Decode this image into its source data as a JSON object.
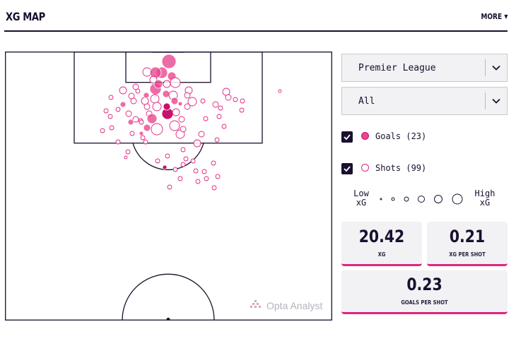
{
  "header": {
    "title": "XG MAP",
    "more_label": "MORE"
  },
  "filters": {
    "competition": "Premier League",
    "situation": "All"
  },
  "legend": {
    "goals_label": "Goals (23)",
    "shots_label": "Shots (99)",
    "goals_checked": true,
    "shots_checked": true,
    "low_line1": "Low",
    "low_line2": "xG",
    "high_line1": "High",
    "high_line2": "xG"
  },
  "stats": {
    "xg_value": "20.42",
    "xg_label": "XG",
    "xg_per_shot_value": "0.21",
    "xg_per_shot_label": "XG PER SHOT",
    "goals_per_shot_value": "0.23",
    "goals_per_shot_label": "GOALS PER SHOT"
  },
  "watermark": "Opta Analyst",
  "colors": {
    "goal": "#e8478f",
    "goal_dark": "#c8106d",
    "shot_stroke": "#e0257f",
    "accent": "#e0257f",
    "ink": "#1a0f2e"
  },
  "icons": {
    "checkbox": "checkmark-icon",
    "caret": "chevron-down-icon",
    "more": "chevron-down-icon"
  }
}
